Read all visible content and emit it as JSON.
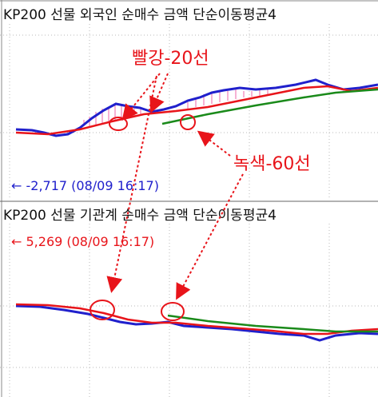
{
  "panels": [
    {
      "title": "KP200 선물 외국인 순매수 금액 단순이동평균4",
      "readout": "← -2,717 (08/09 16:17)"
    },
    {
      "title": "KP200 선물 기관계 순매수 금액 단순이동평균4",
      "readout": "← 5,269 (08/09 16:17)"
    }
  ],
  "annotations": [
    "빨강-20선",
    "녹색-60선"
  ]
}
